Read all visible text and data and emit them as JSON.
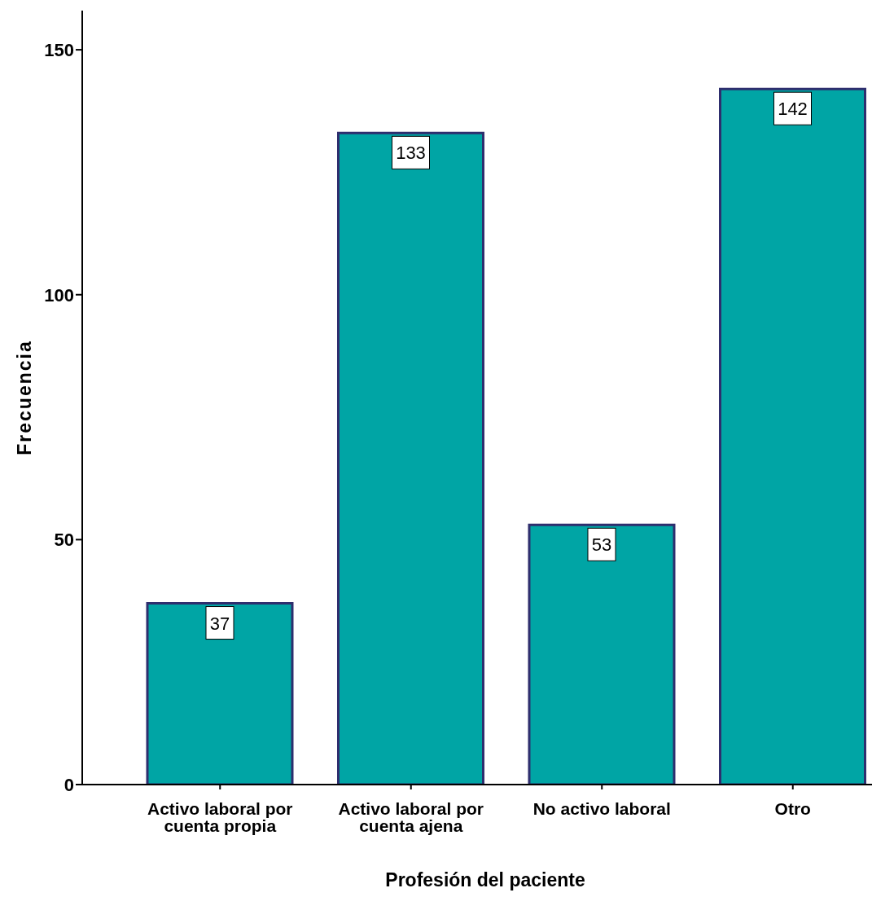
{
  "chart_data": {
    "type": "bar",
    "xlabel": "Profesión del paciente",
    "ylabel": "Frecuencia",
    "categories": [
      "Activo laboral por cuenta propia",
      "Activo laboral por cuenta ajena",
      "No activo laboral",
      "Otro"
    ],
    "values": [
      37,
      133,
      53,
      142
    ],
    "color": "#00a5a5",
    "ylim": [
      0,
      158
    ],
    "yticks": [
      0,
      50,
      100,
      150
    ],
    "grid": false,
    "data_labels": true
  }
}
